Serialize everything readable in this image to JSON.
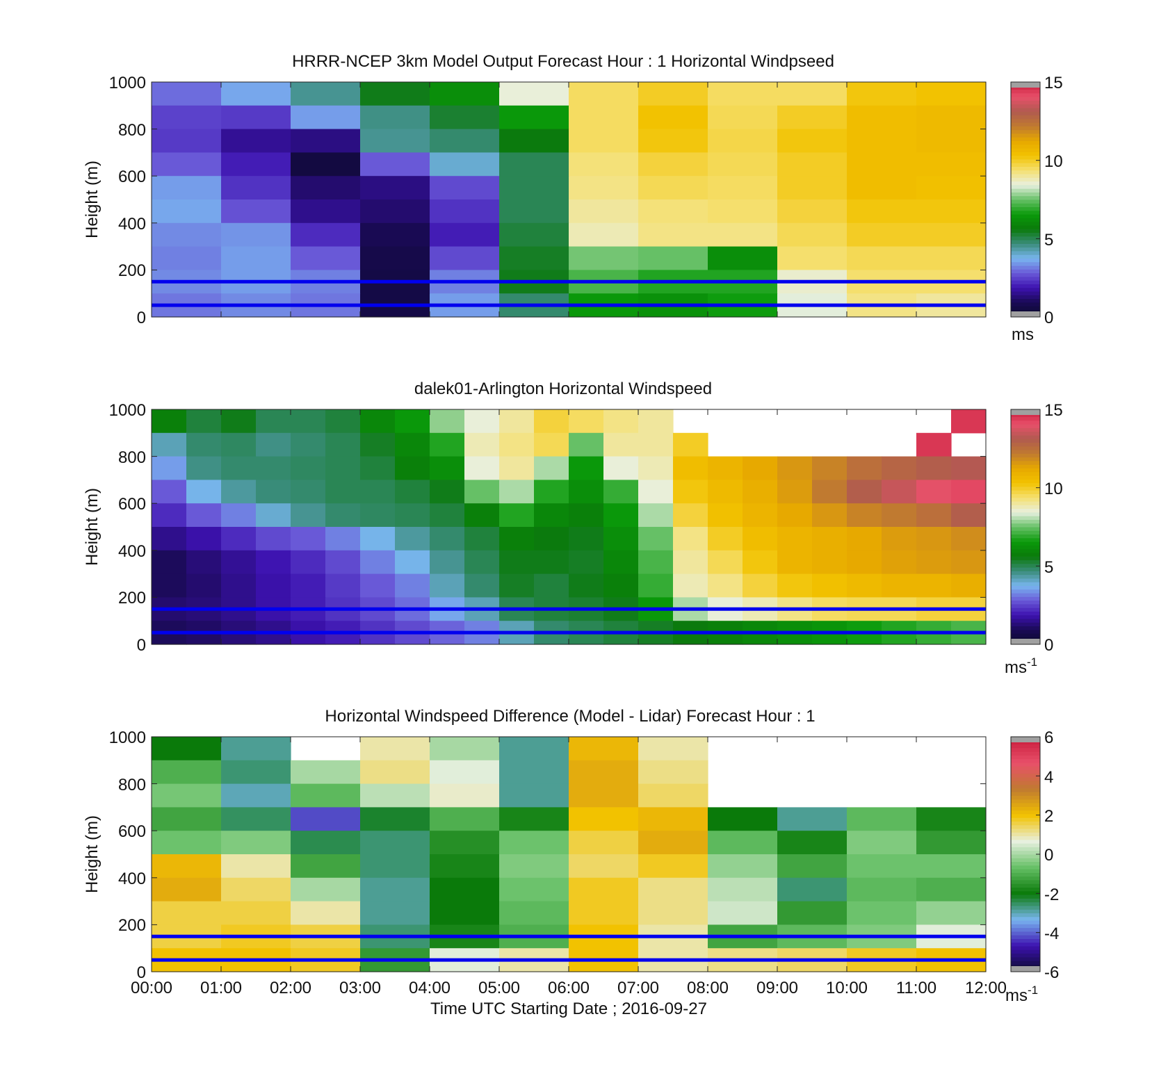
{
  "colors": {
    "cbar_speed": [
      "#0a0a2a",
      "#1a0a55",
      "#3d12b0",
      "#6a5ad8",
      "#79b6f0",
      "#3a8c7a",
      "#0a7a0a",
      "#0a9a0a",
      "#66c066",
      "#e8f0e0",
      "#f5e070",
      "#f2c200",
      "#e6a800",
      "#c07a30",
      "#b05a50",
      "#e8506a",
      "#c81a3a"
    ],
    "cbar_diff": [
      "#0a0a2a",
      "#3d12b0",
      "#79b6f0",
      "#0a7a0a",
      "#66c066",
      "#e8f0e0",
      "#f2c200",
      "#c07a30",
      "#e8506a",
      "#c81a3a"
    ],
    "rule_line": "#0000ee",
    "missing": "#a0a0a0"
  },
  "chart_data": [
    {
      "type": "heatmap",
      "title": "HRRR-NCEP 3km Model Output   Forecast Hour : 1 Horizontal Windpseed",
      "xlabel": "",
      "ylabel": "Height (m)",
      "ylim": [
        0,
        1000
      ],
      "yticks": [
        "0",
        "200",
        "400",
        "600",
        "800",
        "1000"
      ],
      "colorbar": {
        "ticks": [
          "0",
          "5",
          "10",
          "15"
        ],
        "unit": "ms",
        "unit_exp": "",
        "range": [
          0,
          15
        ]
      },
      "hlines": [
        150,
        50
      ],
      "time_columns": [
        "00:00",
        "01:00",
        "02:00",
        "03:00",
        "04:00",
        "05:00",
        "06:00",
        "07:00",
        "08:00",
        "09:00",
        "10:00",
        "11:00"
      ],
      "height_levels": [
        1000,
        900,
        800,
        700,
        600,
        500,
        400,
        300,
        200,
        100,
        0
      ],
      "values": [
        [
          3.0,
          3.6,
          4.5,
          5.5,
          6.2,
          8.5,
          9.5,
          10.0,
          9.5,
          9.5,
          10.2,
          10.3
        ],
        [
          2.5,
          2.4,
          3.5,
          4.6,
          5.3,
          6.5,
          9.5,
          10.3,
          9.6,
          10.0,
          10.5,
          10.6
        ],
        [
          2.4,
          1.6,
          1.4,
          4.5,
          4.8,
          5.6,
          9.5,
          10.2,
          9.7,
          10.2,
          10.5,
          10.6
        ],
        [
          2.8,
          2.0,
          0.5,
          2.8,
          4.0,
          5.0,
          9.3,
          9.8,
          9.6,
          10.0,
          10.5,
          10.5
        ],
        [
          3.5,
          2.3,
          1.2,
          1.4,
          2.6,
          5.0,
          9.2,
          9.6,
          9.5,
          10.0,
          10.5,
          10.4
        ],
        [
          3.6,
          2.7,
          1.5,
          1.2,
          2.3,
          5.0,
          9.0,
          9.3,
          9.4,
          9.8,
          10.2,
          10.2
        ],
        [
          3.3,
          3.4,
          2.2,
          0.9,
          2.0,
          5.2,
          8.8,
          9.2,
          9.2,
          9.6,
          10.0,
          10.0
        ],
        [
          3.2,
          3.5,
          2.8,
          0.7,
          2.6,
          5.4,
          7.6,
          7.5,
          6.2,
          9.4,
          9.6,
          9.6
        ],
        [
          3.3,
          3.5,
          3.2,
          0.6,
          3.2,
          5.5,
          7.2,
          6.8,
          6.8,
          8.6,
          9.4,
          9.4
        ],
        [
          3.1,
          3.3,
          3.1,
          0.6,
          3.5,
          4.8,
          6.5,
          6.3,
          6.6,
          8.4,
          9.2,
          9.0
        ]
      ]
    },
    {
      "type": "heatmap",
      "title": "dalek01-Arlington  Horizontal Windspeed",
      "xlabel": "",
      "ylabel": "Height (m)",
      "ylim": [
        0,
        1000
      ],
      "yticks": [
        "0",
        "200",
        "400",
        "600",
        "800",
        "1000"
      ],
      "colorbar": {
        "ticks": [
          "0",
          "5",
          "10",
          "15"
        ],
        "unit": "ms",
        "unit_exp": "-1",
        "range": [
          0,
          15
        ]
      },
      "hlines": [
        150,
        50
      ],
      "time_columns": [
        "00:00",
        "00:30",
        "01:00",
        "01:30",
        "02:00",
        "02:30",
        "03:00",
        "03:30",
        "04:00",
        "04:30",
        "05:00",
        "05:30",
        "06:00",
        "06:30",
        "07:00",
        "07:30",
        "08:00",
        "08:30",
        "09:00",
        "09:30",
        "10:00",
        "10:30",
        "11:00",
        "11:30"
      ],
      "height_levels": [
        1000,
        900,
        800,
        700,
        600,
        500,
        400,
        300,
        200,
        100,
        0
      ],
      "values": [
        [
          5.8,
          5.2,
          5.5,
          5.0,
          5.0,
          5.2,
          6.0,
          6.5,
          7.8,
          8.5,
          9.0,
          9.8,
          9.5,
          9.2,
          9.0,
          null,
          null,
          null,
          null,
          null,
          null,
          null,
          null,
          14.5
        ],
        [
          4.2,
          4.8,
          4.9,
          4.6,
          4.8,
          5.0,
          5.4,
          6.0,
          6.8,
          8.8,
          9.2,
          9.6,
          7.5,
          9.0,
          9.0,
          10.0,
          null,
          null,
          null,
          null,
          null,
          null,
          14.5,
          null
        ],
        [
          3.5,
          4.6,
          4.8,
          4.8,
          4.9,
          5.0,
          5.2,
          5.8,
          6.2,
          8.5,
          9.0,
          8.0,
          6.5,
          8.5,
          8.8,
          10.5,
          10.8,
          11.2,
          11.6,
          12.0,
          12.5,
          12.8,
          13.0,
          13.2
        ],
        [
          2.8,
          3.8,
          4.4,
          4.7,
          4.8,
          5.0,
          5.0,
          5.2,
          5.5,
          7.5,
          8.0,
          6.8,
          6.2,
          7.0,
          8.5,
          10.2,
          10.6,
          11.0,
          11.5,
          12.2,
          13.0,
          13.5,
          14.0,
          14.2
        ],
        [
          2.2,
          2.8,
          3.2,
          4.0,
          4.5,
          4.8,
          4.9,
          5.0,
          5.2,
          5.8,
          6.8,
          6.0,
          5.8,
          6.5,
          8.0,
          9.8,
          10.4,
          10.8,
          11.2,
          11.6,
          12.0,
          12.2,
          12.5,
          13.0
        ],
        [
          1.5,
          1.8,
          2.2,
          2.6,
          2.8,
          3.2,
          3.8,
          4.4,
          4.8,
          5.2,
          5.8,
          5.6,
          5.5,
          6.2,
          7.5,
          9.2,
          10.0,
          10.5,
          10.8,
          11.0,
          11.2,
          11.5,
          11.6,
          11.8
        ],
        [
          1.0,
          1.3,
          1.6,
          1.9,
          2.2,
          2.6,
          3.2,
          3.8,
          4.5,
          5.0,
          5.5,
          5.5,
          5.4,
          6.0,
          7.2,
          9.0,
          9.6,
          10.2,
          10.8,
          11.0,
          11.2,
          11.4,
          11.5,
          11.6
        ],
        [
          1.0,
          1.2,
          1.5,
          1.8,
          2.0,
          2.4,
          2.8,
          3.2,
          4.2,
          4.8,
          5.4,
          5.2,
          5.5,
          5.8,
          7.0,
          8.8,
          9.2,
          9.8,
          10.2,
          10.4,
          10.6,
          10.8,
          10.8,
          11.0
        ],
        [
          1.2,
          1.3,
          1.5,
          1.8,
          2.0,
          2.3,
          2.6,
          3.0,
          3.6,
          4.2,
          5.0,
          5.2,
          5.3,
          5.5,
          6.5,
          8.0,
          8.5,
          8.8,
          9.2,
          9.5,
          9.6,
          9.6,
          9.8,
          9.8
        ],
        [
          1.0,
          1.1,
          1.3,
          1.5,
          1.8,
          2.0,
          2.3,
          2.6,
          2.9,
          3.2,
          4.2,
          4.8,
          5.0,
          5.2,
          5.4,
          5.6,
          5.8,
          6.0,
          6.2,
          6.4,
          6.6,
          6.8,
          7.0,
          7.2
        ]
      ]
    },
    {
      "type": "heatmap",
      "title": "Horizontal Windspeed Difference (Model - Lidar) Forecast Hour : 1",
      "xlabel": "Time UTC  Starting Date ; 2016-09-27",
      "ylabel": "Height (m)",
      "ylim": [
        0,
        1000
      ],
      "yticks": [
        "0",
        "200",
        "400",
        "600",
        "800",
        "1000"
      ],
      "xticks": [
        "00:00",
        "01:00",
        "02:00",
        "03:00",
        "04:00",
        "05:00",
        "06:00",
        "07:00",
        "08:00",
        "09:00",
        "10:00",
        "11:00",
        "12:00"
      ],
      "colorbar": {
        "ticks": [
          "-6",
          "-4",
          "-2",
          "0",
          "2",
          "4",
          "6"
        ],
        "unit": "ms",
        "unit_exp": "-1",
        "range": [
          -6,
          6
        ]
      },
      "hlines": [
        150,
        50
      ],
      "time_columns": [
        "00:00",
        "01:00",
        "02:00",
        "03:00",
        "04:00",
        "05:00",
        "06:00",
        "07:00",
        "08:00",
        "09:00",
        "10:00",
        "11:00"
      ],
      "height_levels": [
        1000,
        900,
        800,
        700,
        600,
        500,
        400,
        300,
        200,
        100,
        0
      ],
      "values": [
        [
          -2.0,
          -2.8,
          null,
          1.0,
          0.0,
          -2.8,
          2.2,
          1.0,
          null,
          null,
          null,
          null
        ],
        [
          -1.0,
          -2.6,
          0.0,
          1.2,
          0.6,
          -2.8,
          2.4,
          1.2,
          null,
          null,
          null,
          null
        ],
        [
          -0.5,
          -3.0,
          -0.8,
          0.2,
          0.8,
          -2.8,
          2.4,
          1.4,
          null,
          null,
          null,
          null
        ],
        [
          -1.2,
          -2.5,
          -4.2,
          -2.2,
          -1.0,
          -1.8,
          2.0,
          2.2,
          -2.0,
          -2.8,
          -0.8,
          -1.8
        ],
        [
          -0.6,
          -0.4,
          -2.4,
          -2.6,
          -1.6,
          -0.6,
          1.6,
          2.4,
          -0.8,
          -1.8,
          -0.4,
          -1.4
        ],
        [
          2.2,
          1.0,
          -1.2,
          -2.6,
          -1.8,
          -0.4,
          1.4,
          1.8,
          -0.2,
          -1.2,
          -0.6,
          -0.6
        ],
        [
          2.4,
          1.4,
          0.0,
          -2.8,
          -2.0,
          -0.6,
          1.8,
          1.2,
          0.2,
          -2.6,
          -0.8,
          -1.0
        ],
        [
          1.6,
          1.6,
          1.0,
          -2.8,
          -2.0,
          -0.8,
          1.8,
          1.2,
          0.4,
          -1.4,
          -0.6,
          -0.2
        ],
        [
          1.6,
          1.8,
          1.6,
          -2.6,
          -1.8,
          -1.0,
          2.0,
          1.0,
          -1.2,
          -0.8,
          -0.4,
          0.6
        ],
        [
          2.0,
          2.0,
          1.8,
          -1.4,
          0.6,
          1.0,
          2.0,
          1.0,
          1.2,
          1.4,
          1.8,
          2.0
        ]
      ]
    }
  ]
}
